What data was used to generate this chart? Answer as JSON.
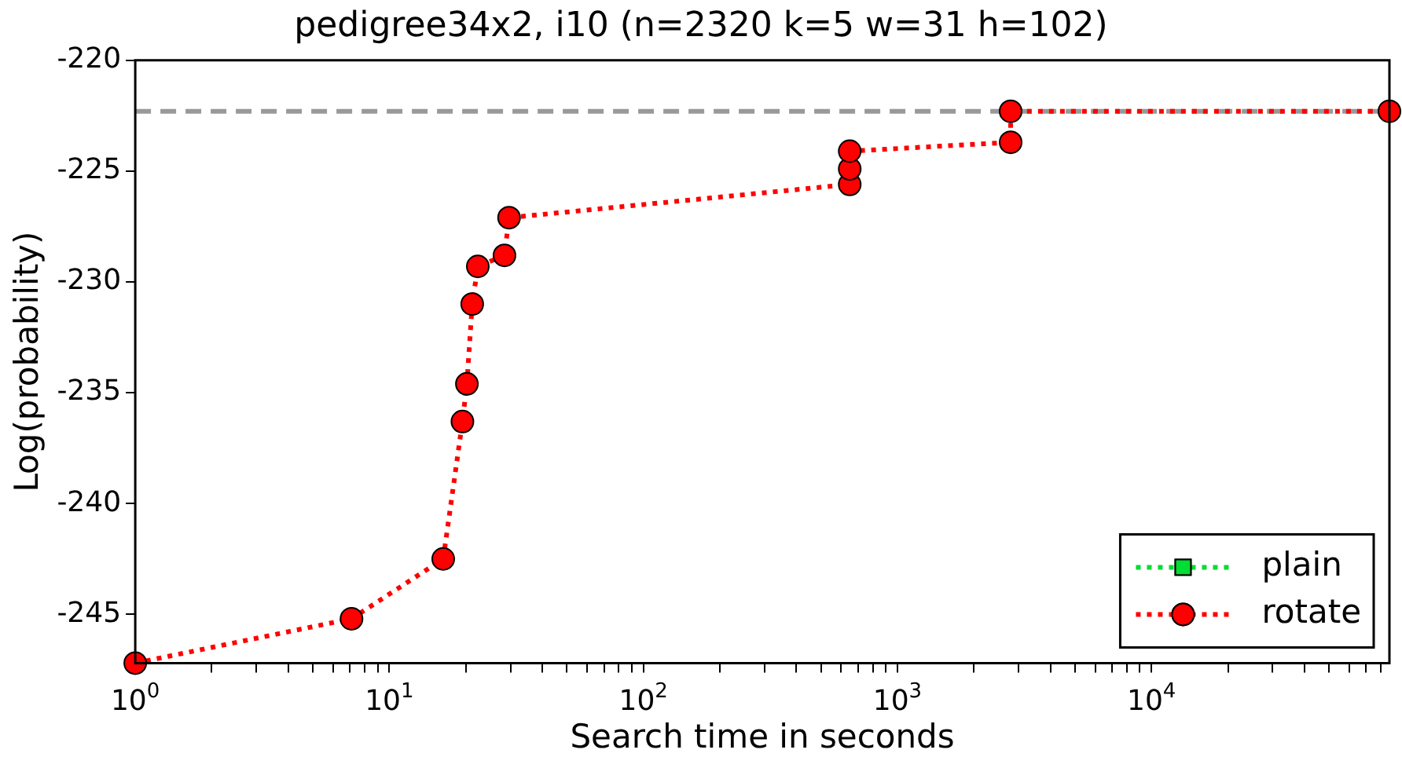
{
  "chart_data": {
    "type": "line",
    "title": "pedigree34x2, i10 (n=2320 k=5 w=31 h=102)",
    "xlabel": "Search time in seconds",
    "ylabel": "Log(probability)",
    "log": "x",
    "xlim": [
      1,
      86400
    ],
    "xticks": [
      {
        "value": 1,
        "label": "10$^{0}$"
      },
      {
        "value": 2,
        "label": null
      },
      {
        "value": 3,
        "label": null
      },
      {
        "value": 4,
        "label": null
      },
      {
        "value": 5,
        "label": null
      },
      {
        "value": 6,
        "label": null
      },
      {
        "value": 7,
        "label": null
      },
      {
        "value": 8,
        "label": null
      },
      {
        "value": 9,
        "label": null
      },
      {
        "value": 10,
        "label": "10$^{1}$"
      },
      {
        "value": 20,
        "label": null
      },
      {
        "value": 30,
        "label": null
      },
      {
        "value": 40,
        "label": null
      },
      {
        "value": 50,
        "label": null
      },
      {
        "value": 60,
        "label": null
      },
      {
        "value": 70,
        "label": null
      },
      {
        "value": 80,
        "label": null
      },
      {
        "value": 90,
        "label": null
      },
      {
        "value": 100,
        "label": "10$^{2}$"
      },
      {
        "value": 200,
        "label": null
      },
      {
        "value": 300,
        "label": null
      },
      {
        "value": 400,
        "label": null
      },
      {
        "value": 500,
        "label": null
      },
      {
        "value": 600,
        "label": null
      },
      {
        "value": 700,
        "label": null
      },
      {
        "value": 800,
        "label": null
      },
      {
        "value": 900,
        "label": null
      },
      {
        "value": 1000,
        "label": "10$^{3}$"
      },
      {
        "value": 2000,
        "label": null
      },
      {
        "value": 3000,
        "label": null
      },
      {
        "value": 4000,
        "label": null
      },
      {
        "value": 5000,
        "label": null
      },
      {
        "value": 6000,
        "label": null
      },
      {
        "value": 7000,
        "label": null
      },
      {
        "value": 8000,
        "label": null
      },
      {
        "value": 9000,
        "label": null
      },
      {
        "value": 10000,
        "label": "10$^{4}$"
      },
      {
        "value": 20000,
        "label": null
      },
      {
        "value": 30000,
        "label": null
      },
      {
        "value": 40000,
        "label": null
      },
      {
        "value": 50000,
        "label": null
      },
      {
        "value": 60000,
        "label": null
      },
      {
        "value": 70000,
        "label": null
      },
      {
        "value": 80000,
        "label": null
      }
    ],
    "ylim": [
      -247.2,
      -220
    ],
    "yticks": [
      -245,
      -240,
      -235,
      -230,
      -225,
      -220
    ],
    "grid": false,
    "legend": "bottom right",
    "line_style": "dotted",
    "ref_lines": [
      {
        "axis": "y",
        "value": -222.3,
        "color": "#999999",
        "line_style": "dashed"
      }
    ],
    "series": [
      {
        "name": "plain",
        "color": "#00dd33",
        "marker": "square"
      },
      {
        "name": "rotate",
        "color": "#ff0000",
        "marker": "circle",
        "x": [
          1,
          7.1,
          16.3,
          19.4,
          20.2,
          21.2,
          22.3,
          28.4,
          29.6,
          649,
          649,
          649,
          2790,
          2790,
          86400
        ],
        "values": [
          -247.2,
          -245.2,
          -242.5,
          -236.3,
          -234.6,
          -231.0,
          -229.3,
          -228.8,
          -227.1,
          -225.6,
          -224.9,
          -224.1,
          -223.7,
          -222.3,
          -222.3
        ]
      }
    ]
  }
}
